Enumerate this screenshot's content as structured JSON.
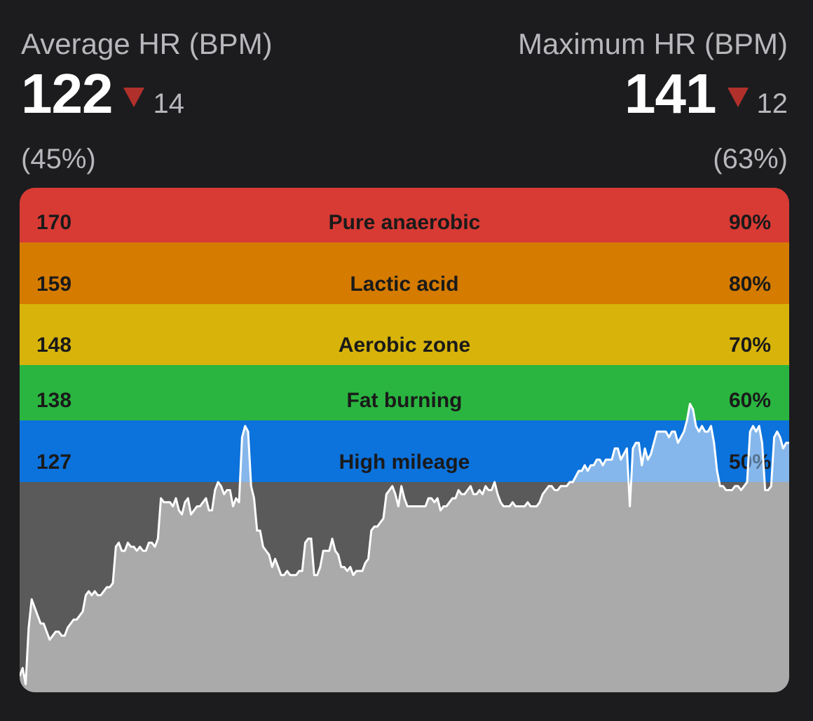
{
  "average": {
    "label": "Average HR (BPM)",
    "value": "122",
    "delta": "14",
    "percent": "(45%)"
  },
  "maximum": {
    "label": "Maximum HR (BPM)",
    "value": "141",
    "delta": "12",
    "percent": "(63%)"
  },
  "colors": {
    "down_arrow": "#b0302c",
    "fill_below": "#aaaaaa",
    "fill_above": "#8ab9ec",
    "bg_below": "#5a5a5a",
    "line": "#ffffff"
  },
  "chart_data": {
    "type": "area",
    "ylabel": "",
    "xlabel": "",
    "zones": [
      {
        "bpm": "170",
        "name": "Pure anaerobic",
        "percent": "90%",
        "color": "#d83a34",
        "upper": 180,
        "lower": 170
      },
      {
        "bpm": "159",
        "name": "Lactic acid",
        "percent": "80%",
        "color": "#d57b00",
        "upper": 170,
        "lower": 159
      },
      {
        "bpm": "148",
        "name": "Aerobic zone",
        "percent": "70%",
        "color": "#d8b40a",
        "upper": 159,
        "lower": 148
      },
      {
        "bpm": "138",
        "name": "Fat burning",
        "percent": "60%",
        "color": "#2ab540",
        "upper": 148,
        "lower": 138
      },
      {
        "bpm": "127",
        "name": "High mileage",
        "percent": "50%",
        "color": "#0c72dc",
        "upper": 138,
        "lower": 127
      }
    ],
    "below_zones_min": 75,
    "series": [
      {
        "values": [
          79,
          81,
          77,
          91,
          98,
          96,
          94,
          92,
          92,
          90,
          88,
          89,
          90,
          90,
          89,
          89,
          91,
          92,
          93,
          93,
          94,
          95,
          99,
          100,
          99,
          100,
          99,
          99,
          100,
          101,
          101,
          102,
          111,
          112,
          110,
          110,
          112,
          111,
          111,
          110,
          111,
          110,
          110,
          112,
          112,
          111,
          113,
          123,
          122,
          122,
          122,
          121,
          123,
          120,
          119,
          122,
          123,
          119,
          120,
          121,
          121,
          122,
          123,
          120,
          120,
          125,
          127,
          126,
          124,
          125,
          125,
          121,
          123,
          122,
          135,
          137,
          136,
          126,
          123,
          115,
          115,
          111,
          110,
          109,
          106,
          108,
          106,
          104,
          104,
          105,
          104,
          104,
          104,
          105,
          105,
          112,
          113,
          113,
          104,
          104,
          106,
          110,
          110,
          110,
          113,
          110,
          109,
          106,
          106,
          105,
          106,
          104,
          105,
          105,
          105,
          107,
          108,
          115,
          116,
          116,
          117,
          118,
          124,
          125,
          126,
          124,
          121,
          126,
          123,
          121,
          121,
          121,
          121,
          121,
          121,
          121,
          123,
          123,
          122,
          123,
          120,
          121,
          121,
          122,
          123,
          123,
          125,
          124,
          124,
          125,
          126,
          124,
          124,
          125,
          124,
          126,
          125,
          125,
          127,
          124,
          122,
          121,
          121,
          121,
          122,
          121,
          121,
          121,
          121,
          122,
          121,
          121,
          121,
          122,
          124,
          125,
          126,
          126,
          125,
          125,
          126,
          126,
          126,
          127,
          127,
          128,
          129,
          129,
          130,
          129,
          130,
          130,
          131,
          131,
          130,
          131,
          131,
          131,
          133,
          133,
          131,
          132,
          133,
          121,
          133,
          134,
          134,
          130,
          133,
          131,
          132,
          134,
          136,
          136,
          136,
          136,
          135,
          136,
          136,
          134,
          135,
          136,
          138,
          141,
          140,
          137,
          136,
          137,
          136,
          136,
          137,
          134,
          129,
          126,
          126,
          125,
          125,
          125,
          126,
          126,
          125,
          126,
          127,
          136,
          137,
          136,
          137,
          134,
          125,
          125,
          126,
          135,
          136,
          135,
          133,
          134,
          134
        ]
      }
    ]
  }
}
